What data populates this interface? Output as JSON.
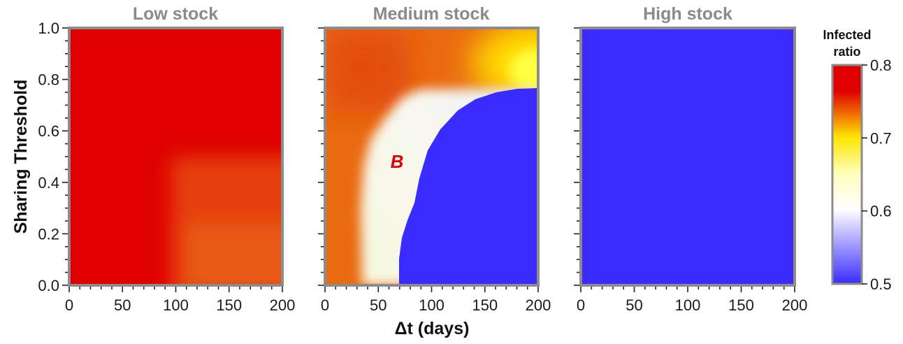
{
  "chart_data": {
    "type": "heatmap",
    "panels": [
      {
        "title": "Low stock",
        "regions": [
          {
            "id": "deep-red",
            "value": 0.78,
            "description": "Δt < ~90 days or threshold > ~0.5"
          },
          {
            "id": "orange-red",
            "value": 0.765,
            "description": "Δt > ~90 days and threshold < ~0.5"
          }
        ]
      },
      {
        "title": "Medium stock",
        "regions": [
          {
            "id": "orange",
            "value": 0.76
          },
          {
            "id": "yellow-corner",
            "value": 0.71,
            "description": "high Δt, high threshold"
          },
          {
            "id": "pale",
            "value": 0.62,
            "label": "B"
          },
          {
            "id": "blue",
            "value": 0.5
          }
        ]
      },
      {
        "title": "High stock",
        "regions": [
          {
            "id": "blue",
            "value": 0.5
          }
        ]
      }
    ],
    "xlabel": "Δt (days)",
    "ylabel": "Sharing Threshold",
    "xlim": [
      0,
      200
    ],
    "ylim": [
      0.0,
      1.0
    ],
    "xticks": [
      "0",
      "50",
      "100",
      "150",
      "200"
    ],
    "yticks": [
      "0.0",
      "0.2",
      "0.4",
      "0.6",
      "0.8",
      "1.0"
    ],
    "colorbar": {
      "title_lines": [
        "Infected",
        "ratio"
      ],
      "range": [
        0.5,
        0.8
      ],
      "ticks": [
        "0.8",
        "0.7",
        "0.6",
        "0.5"
      ],
      "colors": [
        "#e00000",
        "#f5a000",
        "#ffff00",
        "#ffffff",
        "#3a2cff"
      ]
    },
    "colors": {
      "deep_red": "#e00000",
      "orange_red": "#e5410a",
      "orange": "#ea6a10",
      "yellow": "#ffe600",
      "pale": "#f8f8e6",
      "blue": "#3a2cff",
      "frame": "#8c8c8c"
    }
  }
}
